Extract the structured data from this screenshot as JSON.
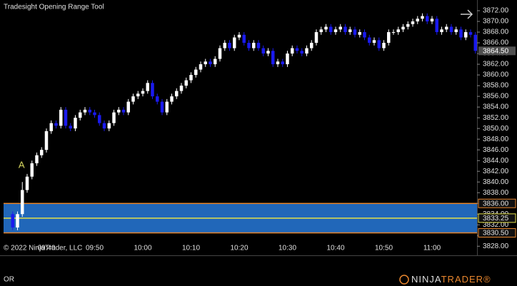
{
  "chart_data": {
    "type": "candlestick",
    "title": "Tradesight Opening Range Tool",
    "copyright": "© 2022 NinjaTrader, LLC",
    "annotation": "A",
    "range_tab": "OR",
    "logo": {
      "part1": "NINJA",
      "part2": "TRADER®"
    },
    "up_color": "#ffffff",
    "down_color": "#1a1aee",
    "grid": false,
    "categories": [
      null,
      null,
      null,
      null,
      null,
      null,
      null,
      "09:40",
      null,
      null,
      null,
      null,
      null,
      null,
      null,
      null,
      null,
      "09:50",
      null,
      null,
      null,
      null,
      null,
      null,
      null,
      null,
      null,
      "10:00",
      null,
      null,
      null,
      null,
      null,
      null,
      null,
      null,
      null,
      "10:10",
      null,
      null,
      null,
      null,
      null,
      null,
      null,
      null,
      null,
      "10:20",
      null,
      null,
      null,
      null,
      null,
      null,
      null,
      null,
      null,
      "10:30",
      null,
      null,
      null,
      null,
      null,
      null,
      null,
      null,
      null,
      "10:40",
      null,
      null,
      null,
      null,
      null,
      null,
      null,
      null,
      null,
      "10:50",
      null,
      null,
      null,
      null,
      null,
      null,
      null,
      null,
      null,
      "11:00",
      null,
      null,
      null,
      null,
      null,
      null,
      null,
      null,
      null
    ],
    "open": [
      3834,
      3831.5,
      3834,
      3838.5,
      3841,
      3843.5,
      3845,
      3846,
      3849.5,
      3851,
      3850.5,
      3853.5,
      3850.5,
      3850,
      3852,
      3853,
      3853.5,
      3853,
      3852.5,
      3851,
      3850,
      3851,
      3853,
      3853.5,
      3853,
      3855,
      3856,
      3856.5,
      3857,
      3858.5,
      3856,
      3855,
      3853,
      3855,
      3856,
      3857,
      3858,
      3859,
      3860,
      3861,
      3862,
      3862.5,
      3862,
      3863,
      3865,
      3866,
      3865,
      3867,
      3867.5,
      3866,
      3865,
      3866,
      3865,
      3864,
      3864.5,
      3862,
      3862.5,
      3862,
      3864,
      3865,
      3864.5,
      3864,
      3865,
      3866,
      3868,
      3868.5,
      3869,
      3868,
      3868.5,
      3869,
      3868,
      3868.5,
      3867.5,
      3868,
      3867,
      3866,
      3866.5,
      3865,
      3866,
      3868,
      3868,
      3868.5,
      3869,
      3869.5,
      3870,
      3870.5,
      3871,
      3870,
      3870.5,
      3868,
      3868.5,
      3869,
      3868,
      3868.5,
      3867,
      3868,
      3867.5
    ],
    "high": [
      3834.5,
      3834.5,
      3840,
      3841.5,
      3844,
      3845.5,
      3846.5,
      3850,
      3851.5,
      3851.5,
      3854,
      3854,
      3851,
      3852.5,
      3853.5,
      3854,
      3854,
      3853.5,
      3853,
      3851.5,
      3851.5,
      3853.5,
      3854,
      3854,
      3855.5,
      3856.5,
      3857,
      3857.5,
      3859,
      3859,
      3856.5,
      3855.5,
      3855.5,
      3856.5,
      3857.5,
      3858.5,
      3859.5,
      3860.5,
      3861.5,
      3862.5,
      3863,
      3863,
      3863.5,
      3865.5,
      3866.5,
      3866.5,
      3867.5,
      3868,
      3868,
      3866.5,
      3866.5,
      3866.5,
      3865.5,
      3865,
      3865,
      3863,
      3863,
      3864.5,
      3865.5,
      3865.5,
      3865,
      3865.5,
      3866.5,
      3868.5,
      3869,
      3869.5,
      3869.5,
      3869,
      3869.5,
      3869.5,
      3869,
      3869,
      3868.5,
      3868.5,
      3867.5,
      3867,
      3867,
      3866.5,
      3868.5,
      3868.5,
      3869,
      3869.5,
      3870,
      3870.5,
      3871,
      3871.5,
      3871.5,
      3871,
      3871,
      3869,
      3869.5,
      3869.5,
      3869,
      3869,
      3868.5,
      3868.5,
      3868
    ],
    "low": [
      3831,
      3831,
      3833.5,
      3838,
      3840.5,
      3843,
      3844.5,
      3845.5,
      3849,
      3850,
      3850,
      3850,
      3849.5,
      3849.5,
      3851.5,
      3852.5,
      3852.5,
      3852,
      3850.5,
      3849.5,
      3849.5,
      3850.5,
      3852.5,
      3852.5,
      3852.5,
      3854.5,
      3855.5,
      3856,
      3856.5,
      3855.5,
      3854.5,
      3852.5,
      3852.5,
      3854.5,
      3855.5,
      3856.5,
      3857.5,
      3858.5,
      3859.5,
      3860.5,
      3861.5,
      3861.5,
      3861.5,
      3862.5,
      3864.5,
      3864.5,
      3864.5,
      3866.5,
      3865.5,
      3864.5,
      3864.5,
      3864.5,
      3863.5,
      3863.5,
      3861.5,
      3861.5,
      3861.5,
      3861.5,
      3863.5,
      3864,
      3863.5,
      3863.5,
      3864.5,
      3865.5,
      3867.5,
      3868,
      3867.5,
      3867.5,
      3868,
      3867.5,
      3867.5,
      3867,
      3867,
      3866.5,
      3865.5,
      3865.5,
      3864.5,
      3864.5,
      3865.5,
      3867.5,
      3867.5,
      3868,
      3868.5,
      3869,
      3869.5,
      3870,
      3869.5,
      3869.5,
      3867.5,
      3867.5,
      3868,
      3867.5,
      3867.5,
      3866.5,
      3866.5,
      3867,
      3864
    ],
    "close": [
      3831.5,
      3834,
      3838.5,
      3841,
      3843.5,
      3845,
      3846,
      3849.5,
      3851,
      3850.5,
      3853.5,
      3850.5,
      3850,
      3852,
      3853,
      3853.5,
      3853,
      3852.5,
      3851,
      3850,
      3851,
      3853,
      3853.5,
      3853,
      3855,
      3856,
      3856.5,
      3857,
      3858.5,
      3856,
      3855,
      3853,
      3855,
      3856,
      3857,
      3858,
      3859,
      3860,
      3861,
      3862,
      3862.5,
      3862,
      3863,
      3865,
      3866,
      3865,
      3867,
      3867.5,
      3866,
      3865,
      3866,
      3865,
      3864,
      3864.5,
      3862,
      3862.5,
      3862,
      3864,
      3865,
      3864.5,
      3864,
      3865,
      3866,
      3868,
      3868.5,
      3869,
      3868,
      3868.5,
      3869,
      3868,
      3868.5,
      3867.5,
      3868,
      3867,
      3866,
      3866.5,
      3865,
      3866,
      3868,
      3868,
      3868.5,
      3869,
      3869.5,
      3870,
      3870.5,
      3871,
      3870,
      3870.5,
      3868,
      3868.5,
      3869,
      3868,
      3868.5,
      3867,
      3868,
      3867.5,
      3864.5
    ],
    "ylim": [
      3826.3,
      3874
    ],
    "yticks": [
      {
        "value": 3828,
        "label": "3828.00"
      },
      {
        "value": 3830,
        "label": "3830.00"
      },
      {
        "value": 3832,
        "label": "3832.00"
      },
      {
        "value": 3834,
        "label": "3834.00"
      },
      {
        "value": 3836,
        "label": "3836.00"
      },
      {
        "value": 3838,
        "label": "3838.00"
      },
      {
        "value": 3840,
        "label": "3840.00"
      },
      {
        "value": 3842,
        "label": "3842.00"
      },
      {
        "value": 3844,
        "label": "3844.00"
      },
      {
        "value": 3846,
        "label": "3846.00"
      },
      {
        "value": 3848,
        "label": "3848.00"
      },
      {
        "value": 3850,
        "label": "3850.00"
      },
      {
        "value": 3852,
        "label": "3852.00"
      },
      {
        "value": 3854,
        "label": "3854.00"
      },
      {
        "value": 3856,
        "label": "3856.00"
      },
      {
        "value": 3858,
        "label": "3858.00"
      },
      {
        "value": 3860,
        "label": "3860.00"
      },
      {
        "value": 3862,
        "label": "3862.00"
      },
      {
        "value": 3864,
        "label": "3864.00"
      },
      {
        "value": 3866,
        "label": "3866.00"
      },
      {
        "value": 3868,
        "label": "3868.00"
      },
      {
        "value": 3870,
        "label": "3870.00"
      },
      {
        "value": 3872,
        "label": "3872.00"
      }
    ],
    "opening_range": {
      "values": [
        3836,
        3833.25,
        3830.5
      ],
      "value_labels": [
        "3836.00",
        "3833.25",
        "3830.50"
      ],
      "colors": [
        "#e8862e",
        "#e4e04a",
        "#e8862e"
      ],
      "fill": "#2167b9"
    },
    "last_price": {
      "value": 3864.5,
      "label": "3864.50"
    }
  }
}
